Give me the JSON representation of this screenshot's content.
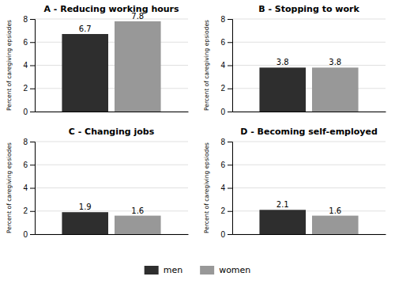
{
  "chart_data": [
    {
      "type": "bar",
      "title": "A - Reducing working hours",
      "y_label": "Percent of caregiving epsiodes",
      "categories": [
        null
      ],
      "series": [
        {
          "name": "men",
          "color": "#2e2e2e",
          "values": [
            6.7
          ]
        },
        {
          "name": "women",
          "color": "#989898",
          "values": [
            7.8
          ]
        }
      ],
      "ylim": [
        0,
        8
      ],
      "yticks": [
        0,
        2,
        4,
        6,
        8
      ],
      "grid": true,
      "data_labels": true,
      "tick_labels": "y",
      "legend": "bottom"
    },
    {
      "type": "bar",
      "title": "B - Stopping to work",
      "y_label": "Percent of caregiving epsiodes",
      "categories": [
        null
      ],
      "series": [
        {
          "name": "men",
          "color": "#2e2e2e",
          "values": [
            3.8
          ]
        },
        {
          "name": "women",
          "color": "#989898",
          "values": [
            3.8
          ]
        }
      ],
      "ylim": [
        0,
        8
      ],
      "yticks": [
        0,
        2,
        4,
        6,
        8
      ],
      "grid": true,
      "data_labels": true,
      "tick_labels": "y"
    },
    {
      "type": "bar",
      "title": "C - Changing jobs",
      "y_label": "Percent of caregiving epsiodes",
      "categories": [
        null
      ],
      "series": [
        {
          "name": "men",
          "color": "#2e2e2e",
          "values": [
            1.9
          ]
        },
        {
          "name": "women",
          "color": "#989898",
          "values": [
            1.6
          ]
        }
      ],
      "ylim": [
        0,
        8
      ],
      "yticks": [
        0,
        2,
        4,
        6,
        8
      ],
      "grid": true,
      "data_labels": true,
      "tick_labels": "y"
    },
    {
      "type": "bar",
      "title": "D - Becoming self-employed",
      "y_label": "Percent of caregiving epsiodes",
      "categories": [
        null
      ],
      "series": [
        {
          "name": "men",
          "color": "#2e2e2e",
          "values": [
            2.1
          ]
        },
        {
          "name": "women",
          "color": "#989898",
          "values": [
            1.6
          ]
        }
      ],
      "ylim": [
        0,
        8
      ],
      "yticks": [
        0,
        2,
        4,
        6,
        8
      ],
      "grid": true,
      "data_labels": true,
      "tick_labels": "y"
    }
  ]
}
